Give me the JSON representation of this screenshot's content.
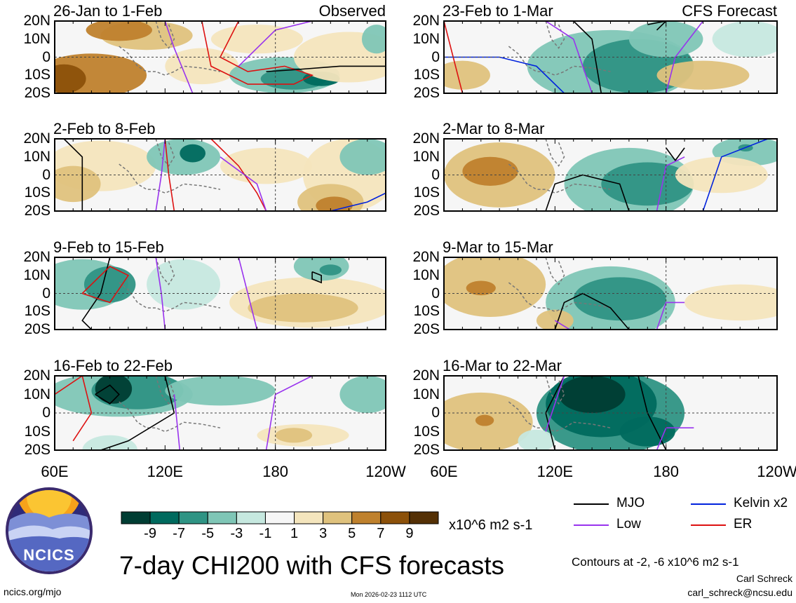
{
  "chart_data": {
    "type": "heatmap",
    "title": "7-day CHI200 with CFS forecasts",
    "units": "x10^6 m2 s-1",
    "latitude_ticks": [
      "20N",
      "10N",
      "0",
      "10S",
      "20S"
    ],
    "longitude_ticks": [
      "60E",
      "120E",
      "180",
      "120W"
    ],
    "x_range_deg_east": [
      60,
      240
    ],
    "y_range_deg": [
      -20,
      20
    ],
    "columns": [
      {
        "heading": "Observed",
        "panels": [
          {
            "period": "26-Jan to 1-Feb"
          },
          {
            "period": "2-Feb to 8-Feb"
          },
          {
            "period": "9-Feb to 15-Feb"
          },
          {
            "period": "16-Feb to 22-Feb"
          }
        ]
      },
      {
        "heading": "CFS Forecast",
        "panels": [
          {
            "period": "23-Feb to 1-Mar"
          },
          {
            "period": "2-Mar to 8-Mar"
          },
          {
            "period": "9-Mar to 15-Mar"
          },
          {
            "period": "16-Mar to 22-Mar"
          }
        ]
      }
    ],
    "colorbar": {
      "ticks": [
        "-9",
        "-7",
        "-5",
        "-3",
        "-1",
        "1",
        "3",
        "5",
        "7",
        "9"
      ],
      "colors": [
        "#003d33",
        "#006a5e",
        "#2f9484",
        "#7fc6b6",
        "#c6e8df",
        "#f6f6f6",
        "#f4e5bd",
        "#dfc27d",
        "#bf812d",
        "#8c510a",
        "#543005"
      ]
    },
    "legend": [
      {
        "label": "MJO",
        "color": "#000000"
      },
      {
        "label": "Kelvin x2",
        "color": "#0022dd"
      },
      {
        "label": "Low",
        "color": "#9933ee"
      },
      {
        "label": "ER",
        "color": "#dd1111"
      }
    ],
    "contour_note": "Contours at -2, -6 x10^6 m2 s-1"
  },
  "branding": {
    "logo_text": "NCICS",
    "site": "ncics.org/mjo",
    "timestamp": "Mon 2026-02-23 1112 UTC",
    "author": "Carl Schreck",
    "email": "carl_schreck@ncsu.edu"
  }
}
